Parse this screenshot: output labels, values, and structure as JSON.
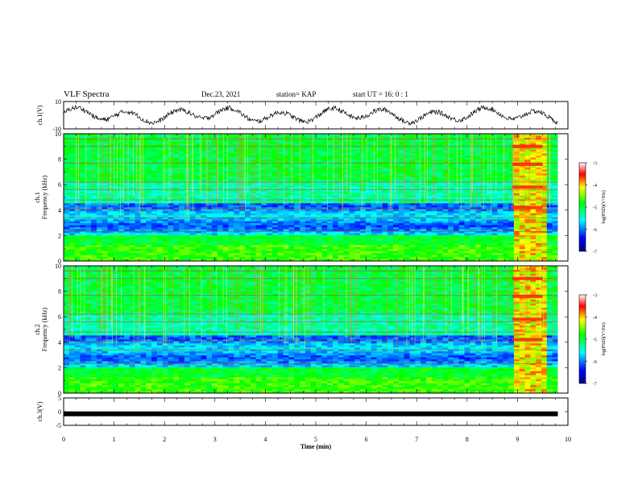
{
  "header": {
    "title": "VLF Spectra",
    "date": "Dec.23, 2021",
    "station": "station= KAP",
    "start": "start UT =  16: 0  : 1"
  },
  "chart_data": [
    {
      "type": "line",
      "panel": "ch1-waveform",
      "ylabel": "ch.1(V)",
      "ylim": [
        -10,
        10
      ],
      "yticks": [
        "10",
        "-10"
      ],
      "xlim": [
        0,
        10
      ],
      "data_range_x": [
        0,
        9.8
      ],
      "description_values": "noisy quasi-periodic waveform oscillating roughly between -7 and 7 V"
    },
    {
      "type": "heatmap",
      "panel": "ch1-spectrogram",
      "ylabel": "ch.1 Frequency (kHz)",
      "ylim": [
        0,
        10
      ],
      "yticks": [
        "0",
        "2",
        "4",
        "6",
        "8",
        "10"
      ],
      "xlim": [
        0,
        10
      ],
      "data_range_x": [
        0,
        9.8
      ],
      "colorbar": {
        "label": "log(PSD)(V²/Hz)",
        "range": [
          -7,
          -3
        ],
        "ticks": [
          "-3",
          "-4",
          "-5",
          "-6",
          "-7"
        ]
      },
      "burst_interval_min": [
        8.9,
        9.5
      ]
    },
    {
      "type": "heatmap",
      "panel": "ch2-spectrogram",
      "ylabel": "ch.2 Frequency (kHz)",
      "ylim": [
        0,
        10
      ],
      "yticks": [
        "0",
        "2",
        "4",
        "6",
        "8",
        "10"
      ],
      "xlim": [
        0,
        10
      ],
      "data_range_x": [
        0,
        9.8
      ],
      "colorbar": {
        "label": "log(PSD)(V²/Hz)",
        "range": [
          -7,
          -3
        ],
        "ticks": [
          "-3",
          "-4",
          "-5",
          "-6",
          "-7"
        ]
      },
      "burst_interval_min": [
        8.9,
        9.5
      ]
    },
    {
      "type": "line",
      "panel": "ch3-signal",
      "ylabel": "ch.3(V)",
      "ylim": [
        -5,
        5
      ],
      "yticks": [
        "5",
        "0",
        "-5"
      ],
      "xlim": [
        0,
        10
      ],
      "xticks": [
        "0",
        "1",
        "2",
        "3",
        "4",
        "5",
        "6",
        "7",
        "8",
        "9",
        "10"
      ],
      "xlabel": "Time (min)",
      "level_v": -0.8,
      "data_range_x": [
        0,
        9.8
      ]
    }
  ],
  "colors": {
    "axis": "#000000",
    "background": "#ffffff"
  }
}
